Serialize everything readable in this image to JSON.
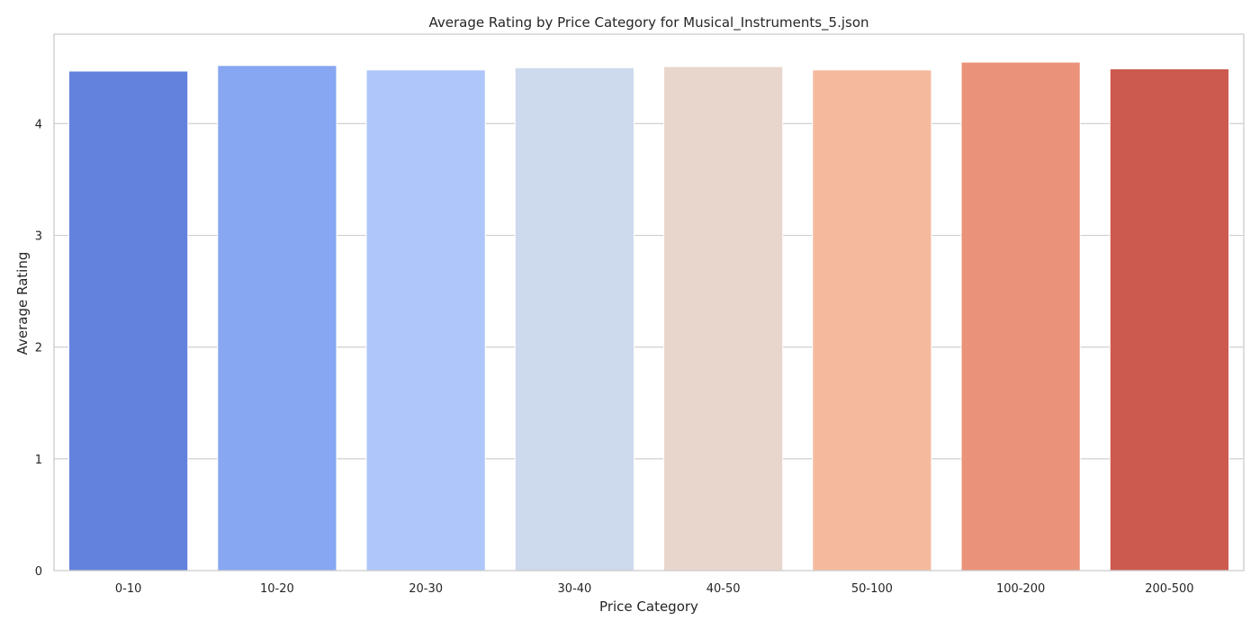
{
  "chart_data": {
    "type": "bar",
    "title": "Average Rating by Price Category for Musical_Instruments_5.json",
    "xlabel": "Price Category",
    "ylabel": "Average Rating",
    "categories": [
      "0-10",
      "10-20",
      "20-30",
      "30-40",
      "40-50",
      "50-100",
      "100-200",
      "200-500"
    ],
    "values": [
      4.47,
      4.52,
      4.48,
      4.5,
      4.51,
      4.48,
      4.55,
      4.49
    ],
    "colors": [
      "#6282de",
      "#87a7f3",
      "#aec6fa",
      "#cdd9ec",
      "#e8d6cd",
      "#f5ba9e",
      "#ea937a",
      "#cc5a4f"
    ],
    "ylim": [
      0,
      4.8
    ],
    "yticks": [
      0,
      1,
      2,
      3,
      4
    ],
    "ytick_labels": [
      "0",
      "1",
      "2",
      "3",
      "4"
    ],
    "grid": "horizontal",
    "legend": "none"
  }
}
